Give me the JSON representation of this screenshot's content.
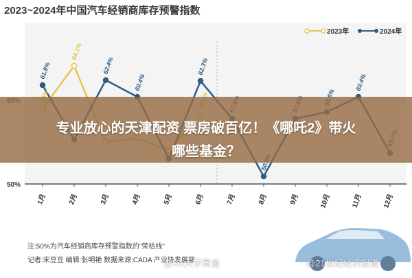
{
  "chart_data": {
    "type": "line",
    "title": "2023~2024年中国汽车经销商库存预警指数",
    "categories": [
      "1月",
      "2月",
      "3月",
      "4月",
      "5月",
      "6月",
      "7月",
      "8月",
      "9月",
      "10月",
      "11月",
      "12月"
    ],
    "series": [
      {
        "name": "2023年",
        "color": "#e8c350",
        "values": [
          59.0,
          64.1,
          55.0,
          55.5,
          54.0,
          58.2,
          null,
          null,
          null,
          null,
          null,
          null
        ],
        "labels": [
          "59%",
          "64.1%",
          "",
          "",
          "",
          "58.2%",
          "",
          "",
          "",
          "",
          "",
          ""
        ]
      },
      {
        "name": "2024年",
        "color": "#2e5b80",
        "values": [
          61.8,
          55.3,
          62.4,
          60.4,
          53.0,
          62.3,
          57.8,
          50.9,
          57.8,
          58.6,
          60.4,
          53.7
        ],
        "labels": [
          "61.8%",
          "",
          "62.4%",
          "60.4%",
          "",
          "62.3%",
          "57.8%",
          "50.9%",
          "57.8%",
          "58.6%",
          "60.4%",
          "53.7%"
        ]
      }
    ],
    "yticks": [
      {
        "value": 60,
        "label": "60%"
      },
      {
        "value": 50,
        "label": "50%"
      }
    ],
    "reference_line": {
      "value": 50
    },
    "grid": true,
    "legend_position": "top-right"
  },
  "overlay": {
    "line1": "专业放心的天津配资 票房破百亿！《哪吒2》带火",
    "line2": "哪些基金？"
  },
  "notes": {
    "note1": "注:50%为汽车经销商库存预警指数的\"荣枯线\"",
    "note2": "记者:宋豆豆   编辑:张明艳   数据来源:CADA   产业协发展部"
  },
  "watermarks": {
    "wm1": "@XX大学黄金",
    "wm2": "@21世纪经济报道"
  },
  "colors": {
    "accent": "#2e5b80",
    "secondary": "#e8c350",
    "overlay": "#96704a"
  }
}
